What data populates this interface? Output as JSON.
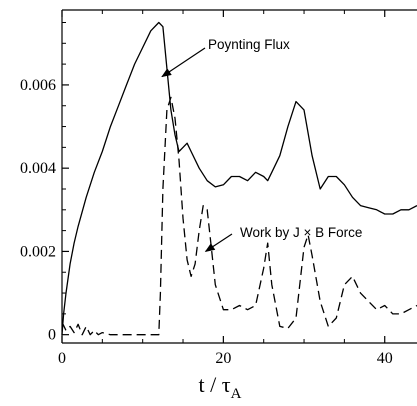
{
  "chart_data": {
    "type": "line",
    "xlabel": "t / τA",
    "xlabel_main": "t / τ",
    "xlabel_sub": "A",
    "ylabel": "",
    "xlim": [
      0,
      44
    ],
    "ylim": [
      -0.0002,
      0.0078
    ],
    "x_ticks": [
      0,
      20,
      40
    ],
    "x_tick_labels": [
      "0",
      "20",
      "40"
    ],
    "y_ticks": [
      0,
      0.002,
      0.004,
      0.006
    ],
    "y_tick_labels": [
      "0",
      "0.002",
      "0.004",
      "0.006"
    ],
    "grid": false,
    "legend": "none",
    "annotations": [
      {
        "text": "Poynting Flux",
        "series": "Poynting Flux",
        "x": 12.4,
        "y": 0.0062
      },
      {
        "text": "Work by J × B Force",
        "series": "Work by J × B Force",
        "x": 17.8,
        "y": 0.002
      }
    ],
    "series": [
      {
        "name": "Poynting Flux",
        "style": "solid",
        "color": "#000000",
        "x": [
          0,
          0.2,
          0.5,
          1,
          1.5,
          2,
          3,
          4,
          5,
          6,
          7,
          8,
          9,
          10,
          11,
          12,
          12.5,
          13,
          13.5,
          14,
          14.5,
          15,
          15.5,
          16,
          17,
          18,
          19,
          20,
          21,
          22,
          23,
          24,
          25,
          25.5,
          26,
          27,
          28,
          29,
          30,
          31,
          32,
          33,
          34,
          35,
          36,
          37,
          38,
          39,
          40,
          41,
          42,
          43,
          44
        ],
        "y": [
          0,
          0.0005,
          0.001,
          0.0017,
          0.0022,
          0.0026,
          0.0033,
          0.0039,
          0.0044,
          0.005,
          0.0055,
          0.006,
          0.0065,
          0.0069,
          0.0073,
          0.0075,
          0.0074,
          0.0064,
          0.0054,
          0.0048,
          0.0044,
          0.0045,
          0.0046,
          0.0044,
          0.004,
          0.0037,
          0.00355,
          0.0036,
          0.0038,
          0.0038,
          0.0037,
          0.0039,
          0.0038,
          0.0037,
          0.0039,
          0.0043,
          0.005,
          0.0056,
          0.0054,
          0.0043,
          0.0035,
          0.0038,
          0.0038,
          0.0036,
          0.0033,
          0.0031,
          0.00305,
          0.003,
          0.0029,
          0.0029,
          0.003,
          0.003,
          0.0031
        ]
      },
      {
        "name": "Work by J × B Force",
        "style": "dashed",
        "color": "#000000",
        "x": [
          0,
          0.5,
          1,
          1.5,
          2,
          2.5,
          3,
          3.5,
          4,
          4.5,
          5,
          6,
          7,
          8,
          9,
          10,
          11,
          12,
          12.2,
          12.5,
          13,
          13.5,
          14,
          14.5,
          15,
          15.5,
          16,
          16.5,
          17,
          17.5,
          18,
          18.5,
          19,
          20,
          21,
          22,
          23,
          24,
          25,
          25.5,
          26,
          27,
          28,
          29,
          30,
          30.5,
          31,
          32,
          33,
          34,
          35,
          36,
          37,
          38,
          39,
          40,
          41,
          42,
          43,
          44
        ],
        "y": [
          0.0003,
          0.0001,
          0.0002,
          5e-05,
          0.00025,
          0.0,
          0.0002,
          0.0,
          0.0001,
          0.0,
          5e-05,
          0.0,
          0.0,
          0.0,
          0.0,
          0.0,
          0.0,
          0.0,
          0.001,
          0.0035,
          0.0054,
          0.0057,
          0.0052,
          0.0042,
          0.0028,
          0.0018,
          0.0014,
          0.0017,
          0.0025,
          0.0031,
          0.003,
          0.0021,
          0.0012,
          0.0006,
          0.0006,
          0.0007,
          0.0006,
          0.0007,
          0.0016,
          0.0022,
          0.0012,
          0.0002,
          0.00015,
          0.0004,
          0.0021,
          0.0024,
          0.0019,
          0.0008,
          0.0002,
          0.0004,
          0.0012,
          0.0014,
          0.001,
          0.0008,
          0.0006,
          0.0007,
          0.0005,
          0.0005,
          0.0006,
          0.0007
        ]
      }
    ]
  }
}
